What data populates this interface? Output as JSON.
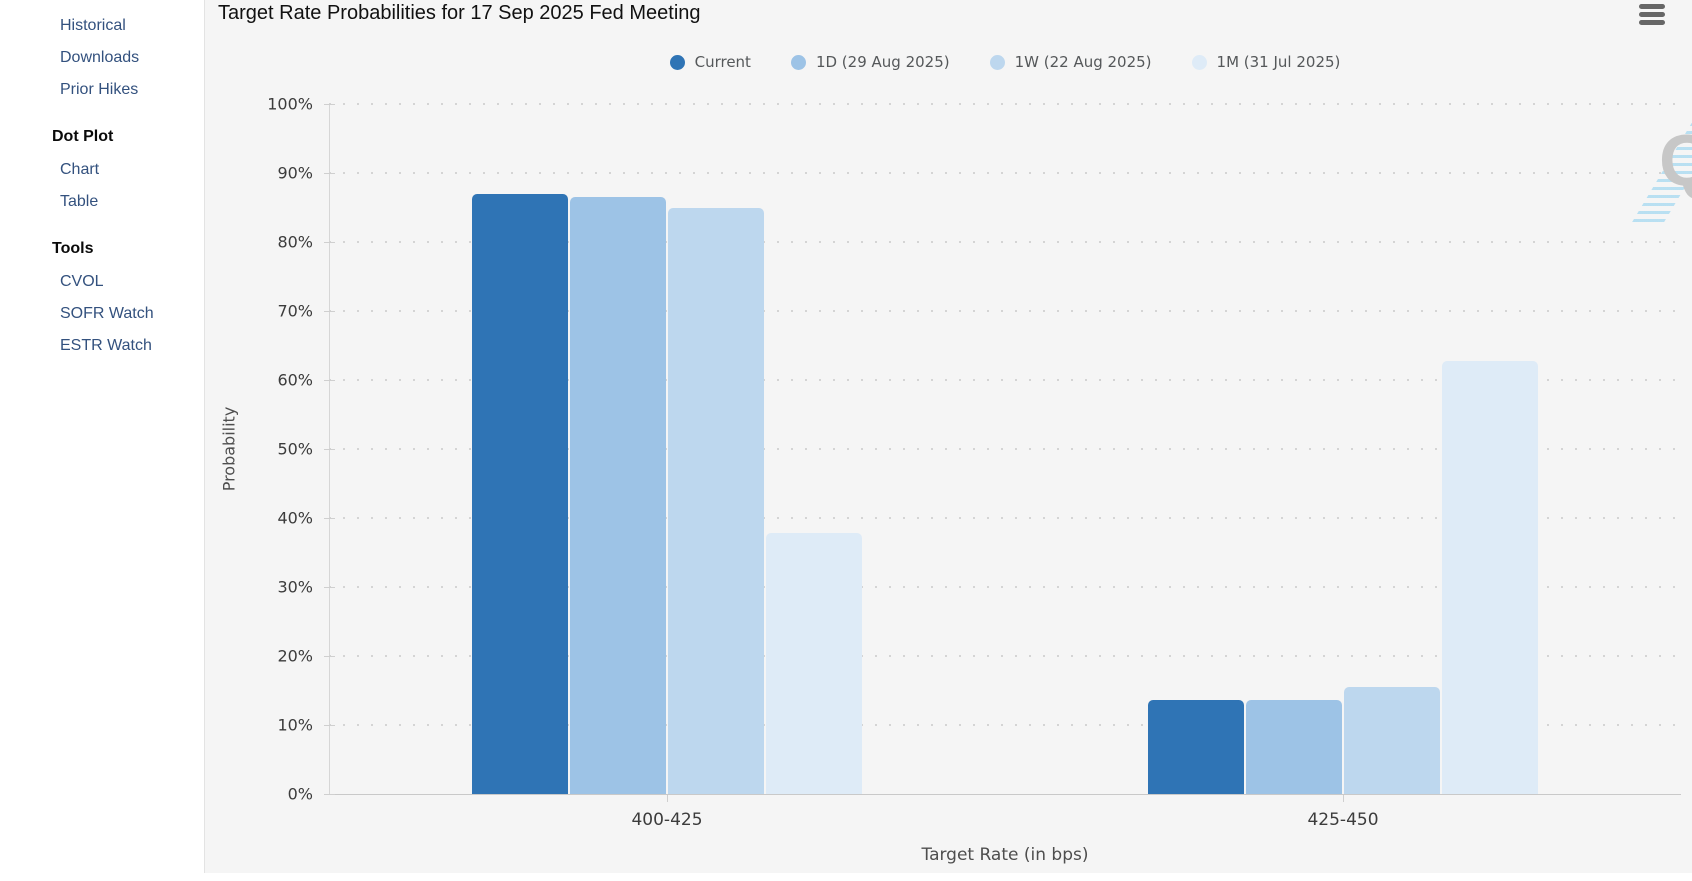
{
  "sidebar": {
    "link_color": "#33517e",
    "sections": [
      {
        "heading": "",
        "items": [
          {
            "label": "Historical"
          },
          {
            "label": "Downloads"
          },
          {
            "label": "Prior Hikes"
          }
        ]
      },
      {
        "heading": "Dot Plot",
        "items": [
          {
            "label": "Chart"
          },
          {
            "label": "Table"
          }
        ]
      },
      {
        "heading": "Tools",
        "items": [
          {
            "label": "CVOL"
          },
          {
            "label": "SOFR Watch"
          },
          {
            "label": "ESTR Watch"
          }
        ]
      }
    ]
  },
  "header": {
    "title": "Target Rate Probabilities for 17 Sep 2025 Fed Meeting",
    "menu_icon": "hamburger-icon"
  },
  "watermark": {
    "letter": "Q"
  },
  "chart_data": {
    "type": "bar",
    "title": "Target Rate Probabilities for 17 Sep 2025 Fed Meeting",
    "categories": [
      "400-425",
      "425-450"
    ],
    "series": [
      {
        "name": "Current",
        "color": "#2f74b5",
        "values": [
          86.9,
          13.7
        ]
      },
      {
        "name": "1D (29 Aug 2025)",
        "color": "#9dc3e6",
        "values": [
          86.6,
          13.6
        ]
      },
      {
        "name": "1W (22 Aug 2025)",
        "color": "#bdd7ee",
        "values": [
          84.9,
          15.5
        ]
      },
      {
        "name": "1M (31 Jul 2025)",
        "color": "#deebf7",
        "values": [
          37.8,
          62.7
        ]
      }
    ],
    "xlabel": "Target Rate (in bps)",
    "ylabel": "Probability",
    "ylim": [
      0,
      100
    ],
    "ytick_step": 10,
    "ytick_suffix": "%",
    "grid": "dotted-horizontal",
    "legend_position": "top-center"
  }
}
